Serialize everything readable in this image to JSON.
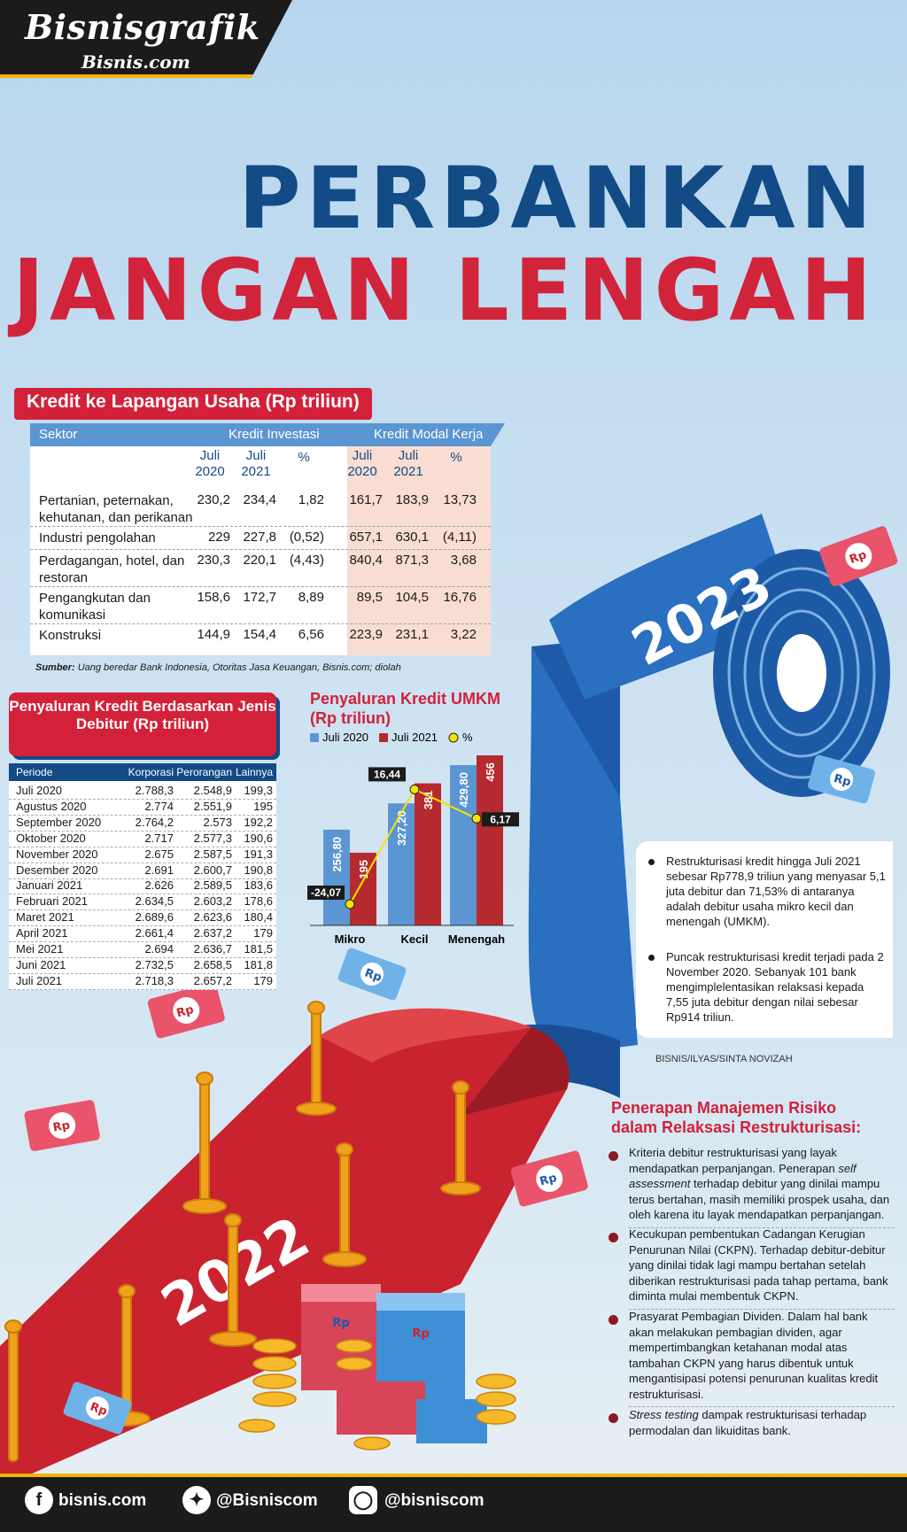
{
  "brand": {
    "title": "Bisnisgrafik",
    "sub": "Bisnis.com"
  },
  "headline": {
    "line1": "PERBANKAN",
    "line2": "JANGAN LENGAH"
  },
  "ribbon_years": [
    "2023",
    "2022"
  ],
  "money_symbol": "Rp",
  "colors": {
    "red": "#d3213a",
    "navy": "#134b86",
    "blue": "#5b96d2",
    "dark_red": "#b52a2f",
    "yellow": "#f5e400"
  },
  "table1": {
    "title": "Kredit ke Lapangan Usaha (Rp triliun)",
    "header_sektor": "Sektor",
    "header_ki": "Kredit Investasi",
    "header_kmk": "Kredit Modal Kerja",
    "sub_headers": [
      "Juli 2020",
      "Juli 2021",
      "%",
      "Juli 2020",
      "Juli 2021",
      "%"
    ],
    "rows": [
      {
        "sektor": "Pertanian, peternakan, kehutanan, dan perikanan",
        "v": [
          "230,2",
          "234,4",
          "1,82",
          "161,7",
          "183,9",
          "13,73"
        ]
      },
      {
        "sektor": "Industri pengolahan",
        "v": [
          "229",
          "227,8",
          "(0,52)",
          "657,1",
          "630,1",
          "(4,11)"
        ]
      },
      {
        "sektor": "Perdagangan, hotel, dan restoran",
        "v": [
          "230,3",
          "220,1",
          "(4,43)",
          "840,4",
          "871,3",
          "3,68"
        ]
      },
      {
        "sektor": "Pengangkutan dan komunikasi",
        "v": [
          "158,6",
          "172,7",
          "8,89",
          "89,5",
          "104,5",
          "16,76"
        ]
      },
      {
        "sektor": "Konstruksi",
        "v": [
          "144,9",
          "154,4",
          "6,56",
          "223,9",
          "231,1",
          "3,22"
        ]
      }
    ],
    "source_label": "Sumber:",
    "source_text": "Uang beredar Bank Indonesia, Otoritas Jasa Keuangan, Bisnis.com; diolah"
  },
  "table2": {
    "title": "Penyaluran Kredit Berdasarkan Jenis Debitur (Rp triliun)",
    "headers": [
      "Periode",
      "Korporasi",
      "Perorangan",
      "Lainnya"
    ],
    "rows": [
      [
        "Juli 2020",
        "2.788,3",
        "2.548,9",
        "199,3"
      ],
      [
        "Agustus 2020",
        "2.774",
        "2.551,9",
        "195"
      ],
      [
        "September 2020",
        "2.764,2",
        "2.573",
        "192,2"
      ],
      [
        "Oktober 2020",
        "2.717",
        "2.577,3",
        "190,6"
      ],
      [
        "November 2020",
        "2.675",
        "2.587,5",
        "191,3"
      ],
      [
        "Desember 2020",
        "2.691",
        "2.600,7",
        "190,8"
      ],
      [
        "Januari 2021",
        "2.626",
        "2.589,5",
        "183,6"
      ],
      [
        "Februari 2021",
        "2.634,5",
        "2.603,2",
        "178,6"
      ],
      [
        "Maret 2021",
        "2.689,6",
        "2.623,6",
        "180,4"
      ],
      [
        "April 2021",
        "2.661,4",
        "2.637,2",
        "179"
      ],
      [
        "Mei 2021",
        "2.694",
        "2.636,7",
        "181,5"
      ],
      [
        "Juni 2021",
        "2.732,5",
        "2.658,5",
        "181,8"
      ],
      [
        "Juli 2021",
        "2.718,3",
        "2.657,2",
        "179"
      ]
    ]
  },
  "chart_data": {
    "type": "bar",
    "title": "Penyaluran Kredit UMKM (Rp triliun)",
    "categories": [
      "Mikro",
      "Kecil",
      "Menengah"
    ],
    "series": [
      {
        "name": "Juli 2020",
        "values": [
          256.8,
          327.2,
          429.8
        ],
        "labels": [
          "256,80",
          "327,20",
          "429,80"
        ],
        "color": "#5b96d2"
      },
      {
        "name": "Juli 2021",
        "values": [
          195,
          381,
          456
        ],
        "labels": [
          "195",
          "381",
          "456"
        ],
        "color": "#b52a2f"
      }
    ],
    "line_series": {
      "name": "%",
      "values": [
        -24.07,
        16.44,
        6.17
      ],
      "labels": [
        "-24,07",
        "16,44",
        "6,17"
      ],
      "color": "#f5e400"
    },
    "ylim": [
      0,
      456
    ],
    "legend_position": "top-left"
  },
  "notes": [
    "Restrukturisasi kredit hingga Juli 2021 sebesar Rp778,9 triliun yang menyasar 5,1 juta debitur dan 71,53% di antaranya adalah debitur usaha mikro kecil dan menengah (UMKM).",
    "Puncak restrukturisasi kredit terjadi pada 2 November 2020. Sebanyak 101 bank mengimplelentasikan relaksasi kepada 7,55 juta debitur dengan nilai sebesar Rp914 triliun."
  ],
  "credit": "BISNIS/ILYAS/SINTA NOVIZAH",
  "risk": {
    "title_line1": "Penerapan Manajemen Risiko",
    "title_line2": "dalam Relaksasi Restrukturisasi:",
    "items": [
      "Kriteria debitur restrukturisasi yang layak mendapatkan perpanjangan. Penerapan self assessment terhadap debitur yang dinilai mampu terus bertahan, masih memiliki prospek usaha, dan oleh karena itu layak mendapatkan perpanjangan.",
      "Kecukupan pembentukan Cadangan Kerugian Penurunan Nilai (CKPN). Terhadap debitur-debitur yang dinilai tidak lagi mampu bertahan setelah diberikan restrukturisasi pada tahap pertama, bank diminta mulai membentuk CKPN.",
      "Prasyarat Pembagian Dividen. Dalam hal bank akan melakukan pembagian dividen, agar mempertimbangkan ketahanan modal atas tambahan CKPN yang harus dibentuk untuk mengantisipasi potensi penurunan kualitas kredit restrukturisasi.",
      "Stress testing dampak restrukturisasi terhadap permodalan dan likuiditas bank."
    ]
  },
  "footer": {
    "facebook": "bisnis.com",
    "twitter": "@Bisniscom",
    "instagram": "@bisniscom"
  }
}
